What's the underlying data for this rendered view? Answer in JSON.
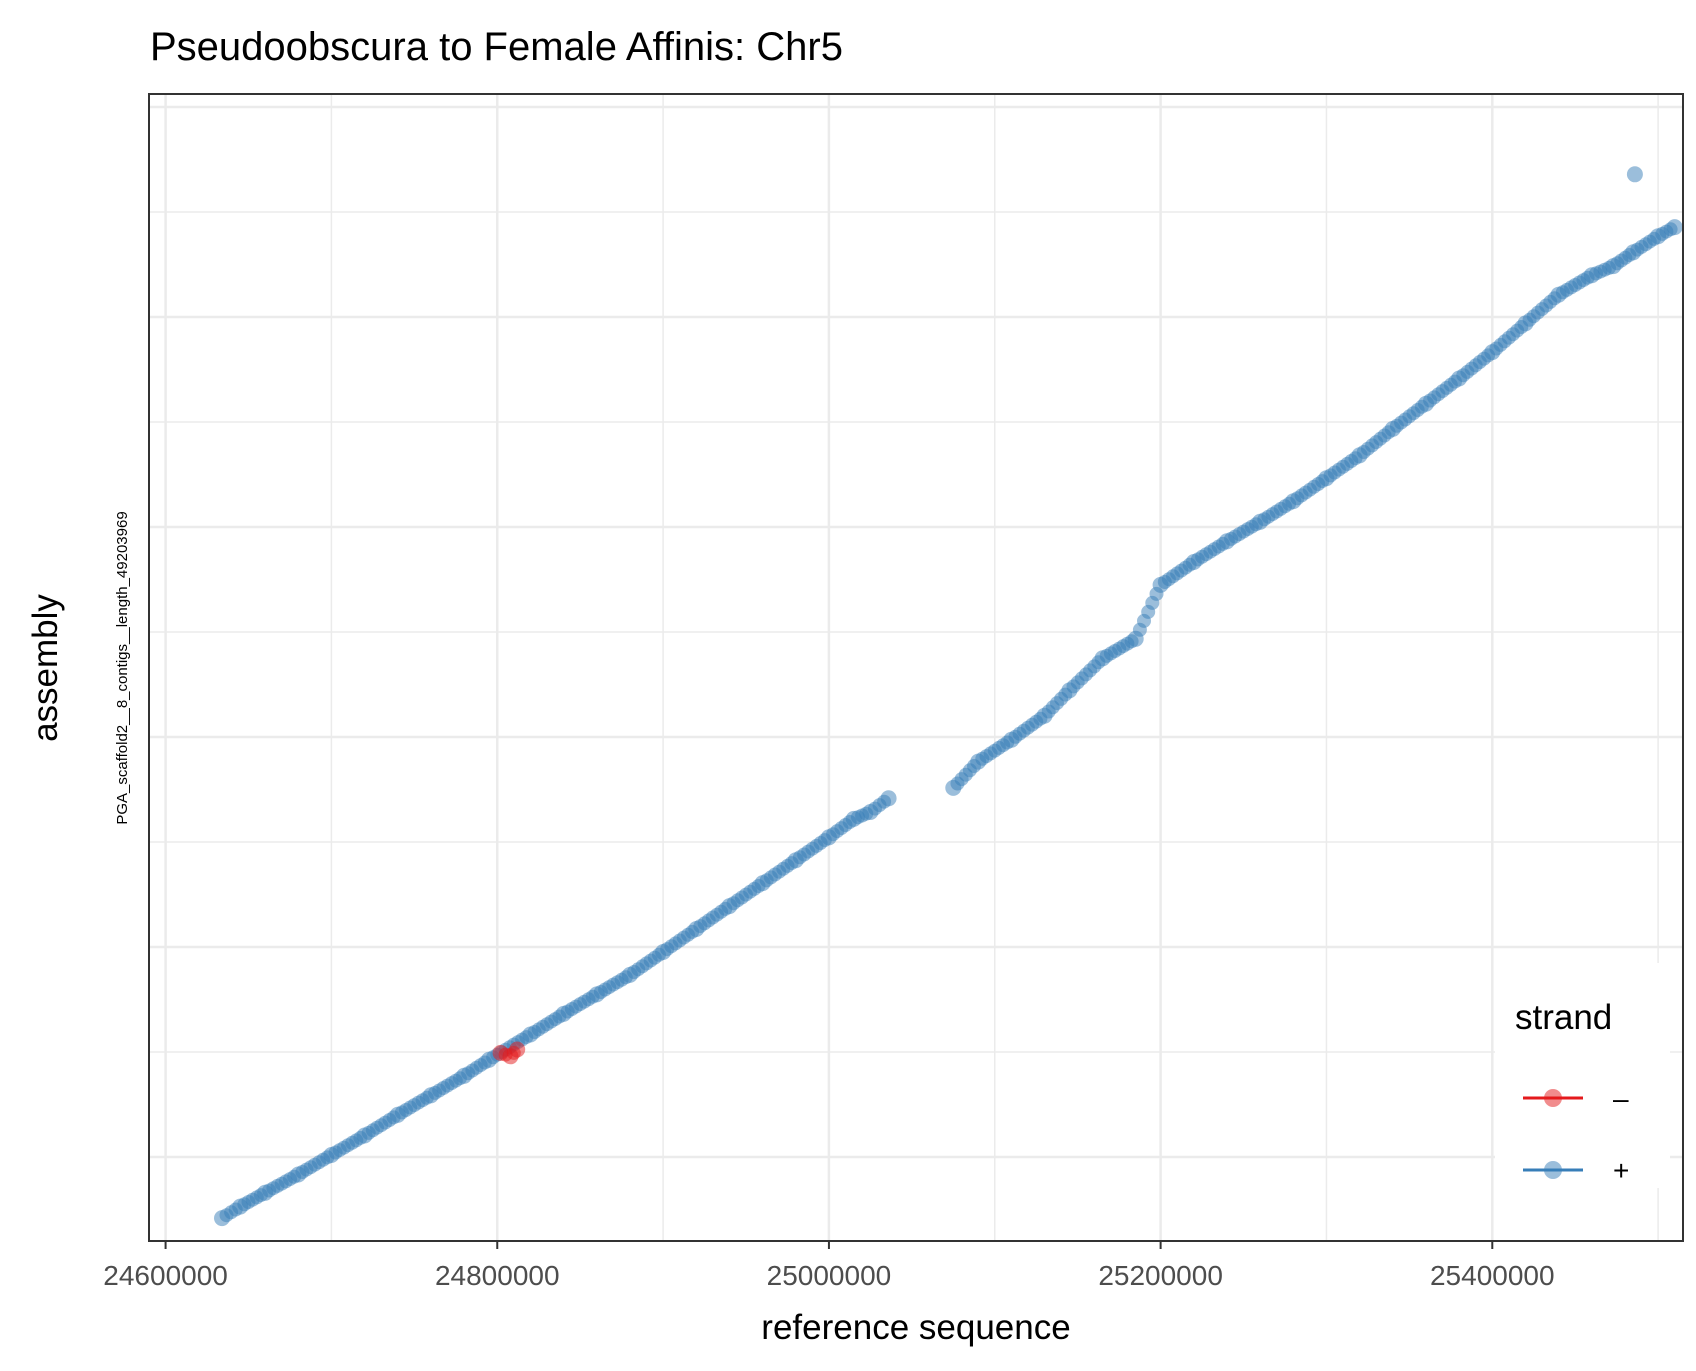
{
  "chart_data": {
    "type": "scatter",
    "title": "Pseudoobscura to Female Affinis: Chr5",
    "xlabel": "reference sequence",
    "ylabel": "assembly",
    "y_category_label": "PGA_scaffold2__8_contigs__length_49203969",
    "xlim": [
      24590000,
      25515000
    ],
    "x_ticks": [
      24600000,
      24800000,
      25000000,
      25200000,
      25400000
    ],
    "x_tick_labels": [
      "24600000",
      "24800000",
      "25000000",
      "25200000",
      "25400000"
    ],
    "grid": true,
    "legend": {
      "title": "strand",
      "position": "bottom-right",
      "entries": [
        {
          "label": "–",
          "color": "#e41a1c"
        },
        {
          "label": "+",
          "color": "#377eb8"
        }
      ]
    },
    "series": [
      {
        "name": "+",
        "color": "#377eb8",
        "points": [
          [
            24634000,
            0.02
          ],
          [
            24645000,
            0.03
          ],
          [
            24660000,
            0.042
          ],
          [
            24680000,
            0.058
          ],
          [
            24700000,
            0.075
          ],
          [
            24720000,
            0.092
          ],
          [
            24740000,
            0.11
          ],
          [
            24760000,
            0.127
          ],
          [
            24780000,
            0.144
          ],
          [
            24795000,
            0.158
          ],
          [
            24820000,
            0.18
          ],
          [
            24840000,
            0.198
          ],
          [
            24860000,
            0.215
          ],
          [
            24880000,
            0.232
          ],
          [
            24900000,
            0.252
          ],
          [
            24920000,
            0.272
          ],
          [
            24940000,
            0.292
          ],
          [
            24960000,
            0.312
          ],
          [
            24980000,
            0.332
          ],
          [
            25000000,
            0.352
          ],
          [
            25015000,
            0.368
          ],
          [
            25025000,
            0.374
          ],
          [
            25036000,
            0.386
          ],
          [
            25075000,
            0.395
          ],
          [
            25090000,
            0.418
          ],
          [
            25110000,
            0.437
          ],
          [
            25130000,
            0.458
          ],
          [
            25145000,
            0.48
          ],
          [
            25165000,
            0.508
          ],
          [
            25185000,
            0.525
          ],
          [
            25200000,
            0.572
          ],
          [
            25220000,
            0.592
          ],
          [
            25240000,
            0.61
          ],
          [
            25260000,
            0.627
          ],
          [
            25280000,
            0.645
          ],
          [
            25300000,
            0.665
          ],
          [
            25320000,
            0.685
          ],
          [
            25340000,
            0.708
          ],
          [
            25360000,
            0.73
          ],
          [
            25380000,
            0.752
          ],
          [
            25400000,
            0.775
          ],
          [
            25420000,
            0.8
          ],
          [
            25440000,
            0.825
          ],
          [
            25460000,
            0.842
          ],
          [
            25473000,
            0.85
          ],
          [
            25485000,
            0.862
          ],
          [
            25500000,
            0.876
          ],
          [
            25510000,
            0.884
          ],
          [
            25486000,
            0.93
          ]
        ]
      },
      {
        "name": "–",
        "color": "#e41a1c",
        "points": [
          [
            24802000,
            0.164
          ],
          [
            24808000,
            0.161
          ],
          [
            24812000,
            0.167
          ]
        ]
      }
    ]
  }
}
